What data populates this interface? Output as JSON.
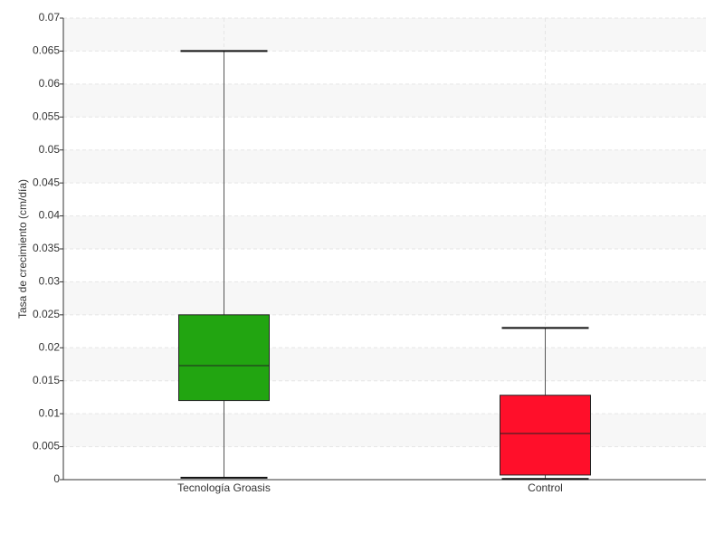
{
  "chart_data": {
    "type": "box",
    "y_label": "Tasa de crecimiento (cm/día)",
    "categories": [
      "Tecnología Groasis",
      "Control"
    ],
    "boxes": [
      {
        "min": 0.0003,
        "q1": 0.012,
        "median": 0.0173,
        "q3": 0.025,
        "max": 0.065,
        "color": "#22a511"
      },
      {
        "min": 0.0001,
        "q1": 0.0007,
        "median": 0.007,
        "q3": 0.0128,
        "max": 0.023,
        "color": "#ff0f2a"
      }
    ],
    "ylim": [
      0,
      0.07
    ],
    "yticks": [
      0,
      0.005,
      0.01,
      0.015,
      0.02,
      0.025,
      0.03,
      0.035,
      0.04,
      0.045,
      0.05,
      0.055,
      0.06,
      0.065,
      0.07
    ],
    "grid": true
  }
}
